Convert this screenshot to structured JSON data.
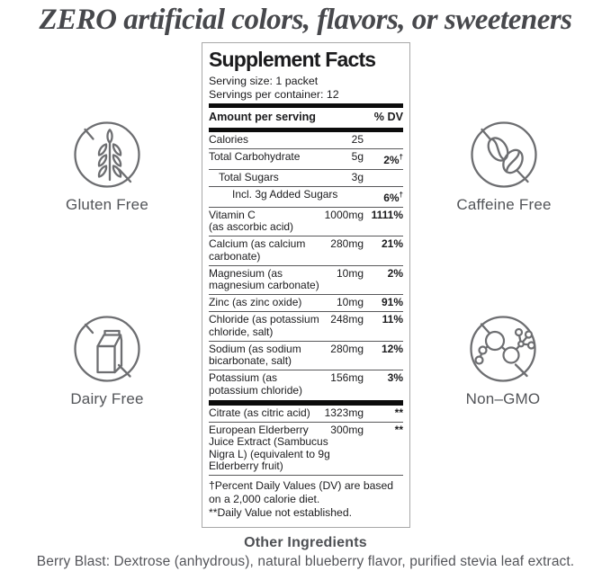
{
  "headline": "ZERO artificial colors, flavors, or sweeteners",
  "badges": [
    {
      "label": "Gluten Free",
      "icon": "wheat-crossed-icon"
    },
    {
      "label": "Caffeine Free",
      "icon": "coffee-beans-crossed-icon"
    },
    {
      "label": "Dairy Free",
      "icon": "milk-carton-crossed-icon"
    },
    {
      "label": "Non–GMO",
      "icon": "molecule-crossed-icon"
    }
  ],
  "supplement_facts": {
    "title": "Supplement Facts",
    "serving_size": "Serving size: 1 packet",
    "servings_per_container": "Servings per container: 12",
    "columns": {
      "amount": "Amount per serving",
      "dv": "% DV"
    },
    "rows": [
      {
        "name": "Calories",
        "amount": "25",
        "dv": "",
        "indent": 0
      },
      {
        "name": "Total Carbohydrate",
        "amount": "5g",
        "dv": "2%†",
        "indent": 0
      },
      {
        "name": "Total Sugars",
        "amount": "3g",
        "dv": "",
        "indent": 1
      },
      {
        "name": "Incl. 3g Added Sugars",
        "amount": "",
        "dv": "6%†",
        "indent": 2
      },
      {
        "name": "Vitamin C\n(as ascorbic acid)",
        "amount": "1000mg",
        "dv": "1111%",
        "indent": 0
      },
      {
        "name": "Calcium (as calcium\ncarbonate)",
        "amount": "280mg",
        "dv": "21%",
        "indent": 0
      },
      {
        "name": "Magnesium (as\nmagnesium carbonate)",
        "amount": "10mg",
        "dv": "2%",
        "indent": 0
      },
      {
        "name": "Zinc (as zinc oxide)",
        "amount": "10mg",
        "dv": "91%",
        "indent": 0
      },
      {
        "name": "Chloride (as potassium\nchloride, salt)",
        "amount": "248mg",
        "dv": "11%",
        "indent": 0
      },
      {
        "name": "Sodium (as sodium\nbicarbonate, salt)",
        "amount": "280mg",
        "dv": "12%",
        "indent": 0
      },
      {
        "name": "Potassium (as\npotassium chloride)",
        "amount": "156mg",
        "dv": "3%",
        "indent": 0
      }
    ],
    "other_rows": [
      {
        "name": "Citrate (as citric acid)",
        "amount": "1323mg",
        "dv": "**",
        "indent": 0
      },
      {
        "name": "European Elderberry\nJuice Extract (Sambucus\nNigra L) (equivalent to 9g\nElderberry fruit)",
        "amount": "300mg",
        "dv": "**",
        "indent": 0
      }
    ],
    "footnotes": [
      "†Percent Daily Values (DV) are based on a 2,000 calorie diet.",
      "**Daily Value not established."
    ]
  },
  "other_ingredients": {
    "title": "Other Ingredients",
    "text": "Berry Blast: Dextrose (anhydrous), natural blueberry flavor, purified stevia leaf extract."
  },
  "colors": {
    "headline": "#47484c",
    "label_text": "#1b1b1d",
    "badge_stroke": "#6d6e71",
    "badge_label": "#525458",
    "footer_text": "#54555a",
    "bar": "#0c0c0c"
  }
}
